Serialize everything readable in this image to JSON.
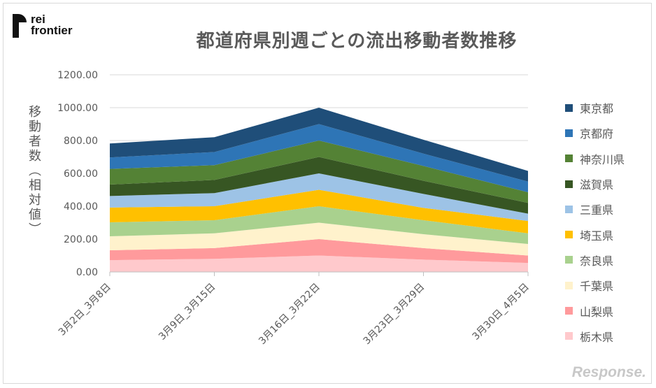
{
  "logo": {
    "line1": "rei",
    "line2": "frontier"
  },
  "watermark": "Response.",
  "chart_data": {
    "type": "area",
    "stacked": true,
    "title": "都道府県別週ごとの流出移動者数推移",
    "ylabel": "移動者数（相対値）",
    "xlabel": "",
    "ylim": [
      0,
      1200
    ],
    "ytick_labels": [
      "0.00",
      "200.00",
      "400.00",
      "600.00",
      "800.00",
      "1000.00",
      "1200.00"
    ],
    "categories": [
      "3月2日_3月8日",
      "3月9日_3月15日",
      "3月16日_3月22日",
      "3月23日_3月29日",
      "3月30日_4月5日"
    ],
    "gridlines": true,
    "legend_position": "right",
    "series": [
      {
        "name": "栃木県",
        "color": "#ffc9cc",
        "values": [
          72,
          80,
          100,
          75,
          55
        ]
      },
      {
        "name": "山梨県",
        "color": "#ff9a9c",
        "values": [
          60,
          65,
          100,
          70,
          45
        ]
      },
      {
        "name": "千葉県",
        "color": "#fff2cc",
        "values": [
          85,
          90,
          100,
          85,
          70
        ]
      },
      {
        "name": "奈良県",
        "color": "#a9d18e",
        "values": [
          85,
          80,
          100,
          85,
          65
        ]
      },
      {
        "name": "埼玉県",
        "color": "#ffc000",
        "values": [
          90,
          85,
          100,
          75,
          75
        ]
      },
      {
        "name": "三重県",
        "color": "#9dc3e6",
        "values": [
          70,
          80,
          100,
          85,
          45
        ]
      },
      {
        "name": "滋賀県",
        "color": "#375623",
        "values": [
          70,
          80,
          100,
          80,
          65
        ]
      },
      {
        "name": "神奈川県",
        "color": "#548235",
        "values": [
          95,
          90,
          100,
          90,
          65
        ]
      },
      {
        "name": "京都府",
        "color": "#2e75b6",
        "values": [
          70,
          80,
          100,
          75,
          65
        ]
      },
      {
        "name": "東京都",
        "color": "#1f4e79",
        "values": [
          85,
          90,
          100,
          85,
          65
        ]
      }
    ]
  }
}
